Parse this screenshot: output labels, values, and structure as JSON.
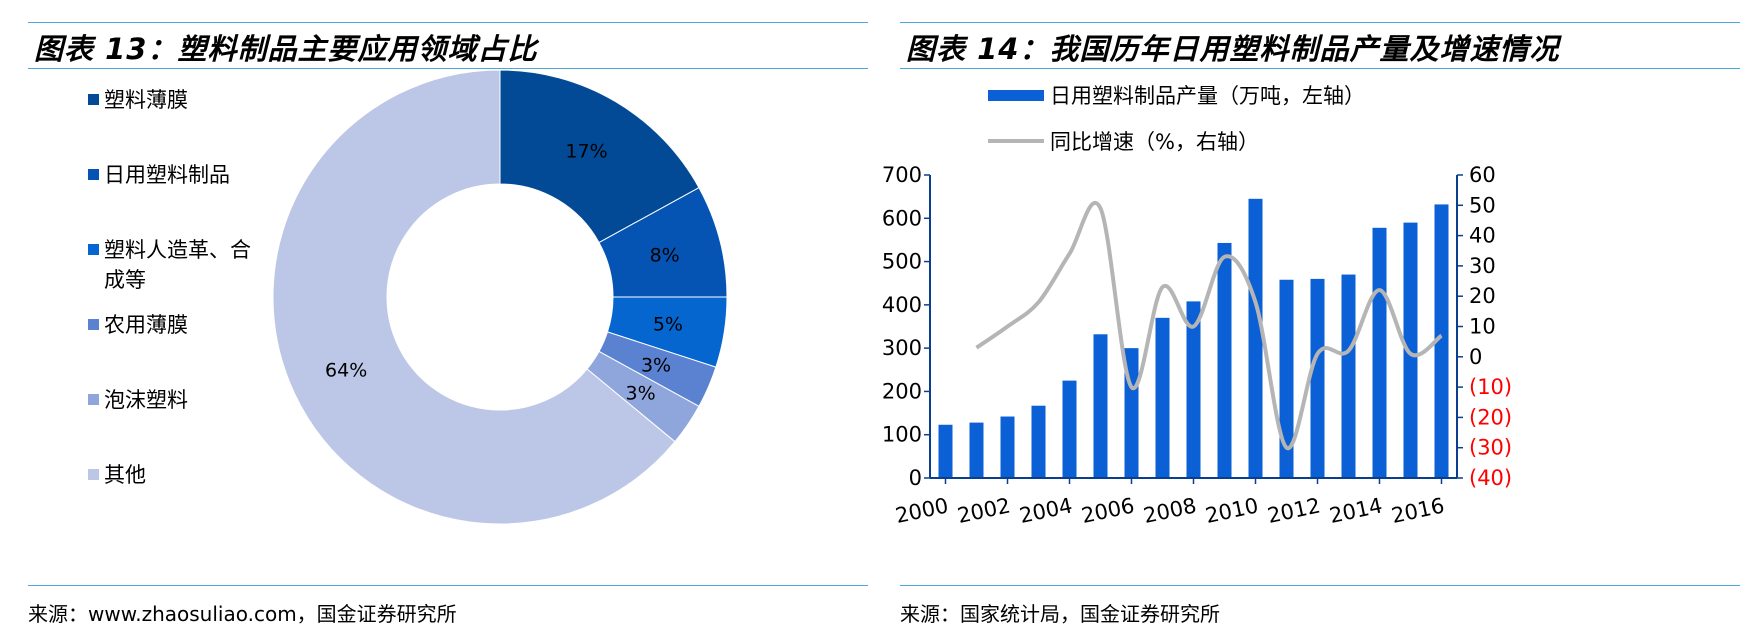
{
  "left": {
    "title": "图表 13：塑料制品主要应用领域占比",
    "source": "来源：www.zhaosuliao.com，国金证券研究所"
  },
  "right": {
    "title": "图表 14：我国历年日用塑料制品产量及增速情况",
    "source": "来源：国家统计局，国金证券研究所"
  },
  "chart_data": [
    {
      "type": "pie",
      "title": "图表 13：塑料制品主要应用领域占比",
      "legend_position": "left",
      "categories": [
        "塑料薄膜",
        "日用塑料制品",
        "塑料人造革、合成等",
        "农用薄膜",
        "泡沫塑料",
        "其他"
      ],
      "legend_lines": [
        [
          "塑料薄膜"
        ],
        [
          "日用塑料制品"
        ],
        [
          "塑料人造革、合",
          "成等"
        ],
        [
          "农用薄膜"
        ],
        [
          "泡沫塑料"
        ],
        [
          "其他"
        ]
      ],
      "values": [
        17,
        8,
        5,
        3,
        3,
        64
      ],
      "labels": [
        "17%",
        "8%",
        "5%",
        "3%",
        "3%",
        "64%"
      ],
      "colors": [
        "#024a96",
        "#0554b3",
        "#0566cf",
        "#5b81d1",
        "#8ea6dc",
        "#bcc7e7"
      ]
    },
    {
      "type": "bar",
      "title": "图表 14：我国历年日用塑料制品产量及增速情况",
      "legend_position": "top",
      "x_tick_labels": [
        "2000",
        "2002",
        "2004",
        "2006",
        "2008",
        "2010",
        "2012",
        "2014",
        "2016"
      ],
      "y_left_ticks": [
        "0",
        "100",
        "200",
        "300",
        "400",
        "500",
        "600",
        "700"
      ],
      "y_right_ticks": [
        "(40)",
        "(30)",
        "(20)",
        "(10)",
        "0",
        "10",
        "20",
        "30",
        "40",
        "50",
        "60"
      ],
      "ylim_left": [
        0,
        700
      ],
      "ylim_right": [
        -40,
        60
      ],
      "series": [
        {
          "name": "日用塑料制品产量（万吨，左轴）",
          "kind": "bar",
          "axis": "left",
          "color": "#0a60d4",
          "x": [
            2000,
            2001,
            2002,
            2003,
            2004,
            2005,
            2006,
            2007,
            2008,
            2009,
            2010,
            2011,
            2012,
            2013,
            2014,
            2015,
            2016
          ],
          "values": [
            123,
            128,
            142,
            167,
            225,
            332,
            300,
            370,
            408,
            543,
            645,
            458,
            460,
            470,
            578,
            590,
            632
          ]
        },
        {
          "name": "同比增速（%，右轴）",
          "kind": "line",
          "axis": "right",
          "color": "#b5b5b5",
          "x": [
            2001,
            2002,
            2003,
            2004,
            2005,
            2006,
            2007,
            2008,
            2009,
            2010,
            2011,
            2012,
            2013,
            2014,
            2015,
            2016
          ],
          "values": [
            3,
            10,
            18,
            34,
            49,
            -10,
            23,
            10,
            33,
            18,
            -30,
            1,
            2,
            22,
            1,
            7
          ]
        }
      ],
      "negative_tick_color": "#ff0000"
    }
  ]
}
